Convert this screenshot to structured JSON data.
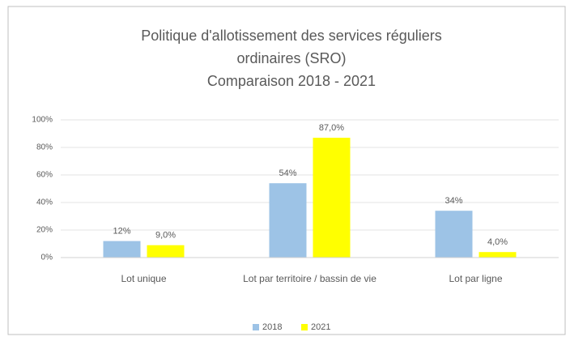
{
  "chart_data": {
    "type": "bar",
    "title": [
      "Politique d'allotissement des services réguliers",
      "ordinaires (SRO)",
      "Comparaison 2018 - 2021"
    ],
    "categories": [
      "Lot unique",
      "Lot par territoire / bassin de vie",
      "Lot par ligne"
    ],
    "series": [
      {
        "name": "2018",
        "color": "#9dc3e6",
        "values": [
          12,
          54,
          34
        ],
        "value_labels": [
          "12%",
          "54%",
          "34%"
        ]
      },
      {
        "name": "2021",
        "color": "#ffff00",
        "values": [
          9.0,
          87.0,
          4.0
        ],
        "value_labels": [
          "9,0%",
          "87,0%",
          "4,0%"
        ]
      }
    ],
    "ylim": [
      0,
      100
    ],
    "yticks": [
      {
        "value": 0,
        "label": "0%"
      },
      {
        "value": 20,
        "label": "20%"
      },
      {
        "value": 40,
        "label": "40%"
      },
      {
        "value": 60,
        "label": "60%"
      },
      {
        "value": 80,
        "label": "80%"
      },
      {
        "value": 100,
        "label": "100%"
      }
    ],
    "grid": true,
    "legend": "bottom"
  }
}
